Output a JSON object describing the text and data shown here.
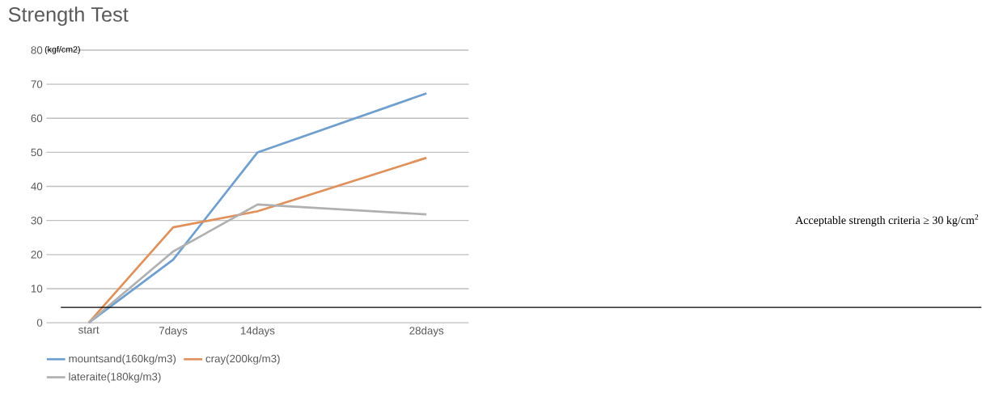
{
  "chart_data": {
    "type": "line",
    "title": "Strength Test",
    "ylabel": "(kgf/cm2)",
    "x": [
      0,
      7,
      14,
      28
    ],
    "xlim": [
      -3.5,
      31.5
    ],
    "xticks": [
      {
        "value": 0,
        "label": "start"
      },
      {
        "value": 7,
        "label": "7days"
      },
      {
        "value": 14,
        "label": "14days"
      },
      {
        "value": 28,
        "label": "28days"
      }
    ],
    "ylim": [
      0,
      80
    ],
    "yticks": [
      0,
      10,
      20,
      30,
      40,
      50,
      60,
      70,
      80
    ],
    "grid": "y",
    "legend": "bottom",
    "marker": "none",
    "line_style": "solid",
    "series": [
      {
        "name": "mountsand(160kg/m3)",
        "color": "#6f9fcf",
        "values": [
          0,
          18.5,
          50,
          67.3
        ]
      },
      {
        "name": "cray(200kg/m3)",
        "color": "#e0905a",
        "values": [
          0,
          28,
          32.7,
          48.4
        ]
      },
      {
        "name": "lateraite(180kg/m3)",
        "color": "#b0b0b0",
        "values": [
          0,
          20.9,
          34.7,
          31.8
        ]
      }
    ],
    "ref_lines": [
      {
        "axis": "y",
        "value": 4.5,
        "color": "#000000"
      }
    ],
    "annotations": [
      "Acceptable strength criteria ≥ 30 kg/cm$^{2}$"
    ]
  }
}
